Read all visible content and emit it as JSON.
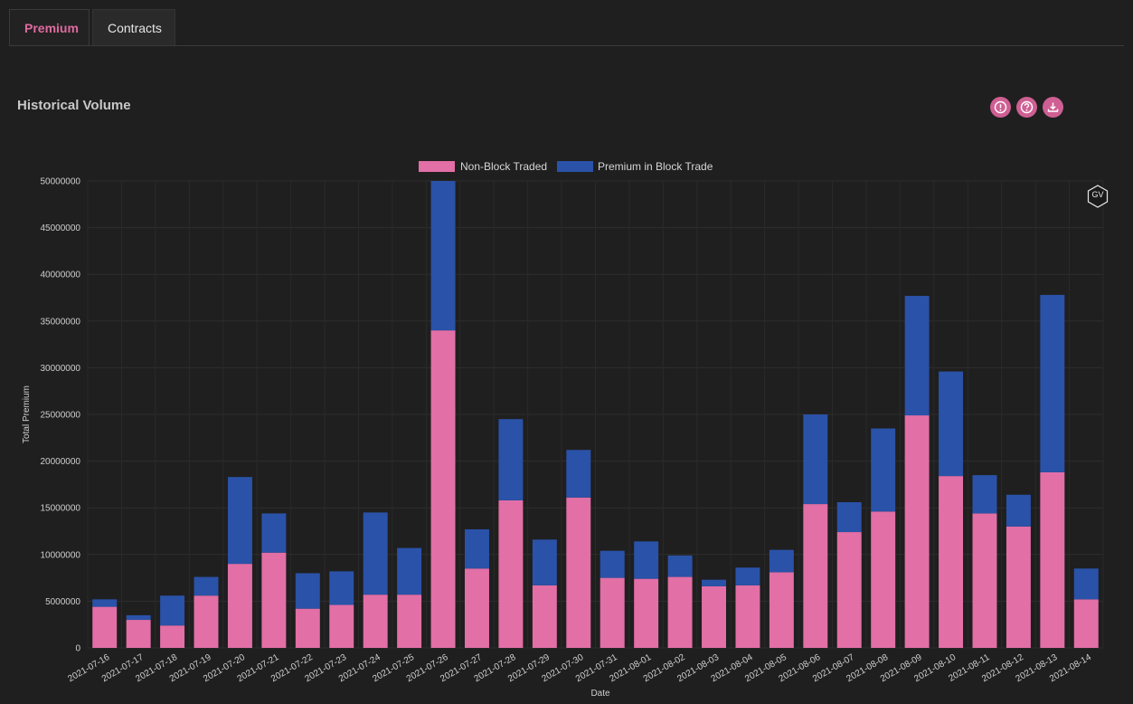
{
  "tabs": [
    {
      "label": "Premium",
      "active": true
    },
    {
      "label": "Contracts",
      "active": false
    }
  ],
  "section_title": "Historical Volume",
  "icons": [
    "alert-icon",
    "help-icon",
    "download-icon"
  ],
  "watermark": "GV",
  "colors": {
    "accent": "#e06aa0",
    "non_block": "#e26fa6",
    "block": "#2a52a8",
    "background": "#1f1f1f"
  },
  "chart_data": {
    "type": "bar",
    "stacked": true,
    "xlabel": "Date",
    "ylabel": "Total Premium",
    "ylim": [
      0,
      50000000
    ],
    "yticks": [
      0,
      5000000,
      10000000,
      15000000,
      20000000,
      25000000,
      30000000,
      35000000,
      40000000,
      45000000,
      50000000
    ],
    "legend_position": "top-center",
    "grid": true,
    "categories": [
      "2021-07-16",
      "2021-07-17",
      "2021-07-18",
      "2021-07-19",
      "2021-07-20",
      "2021-07-21",
      "2021-07-22",
      "2021-07-23",
      "2021-07-24",
      "2021-07-25",
      "2021-07-26",
      "2021-07-27",
      "2021-07-28",
      "2021-07-29",
      "2021-07-30",
      "2021-07-31",
      "2021-08-01",
      "2021-08-02",
      "2021-08-03",
      "2021-08-04",
      "2021-08-05",
      "2021-08-06",
      "2021-08-07",
      "2021-08-08",
      "2021-08-09",
      "2021-08-10",
      "2021-08-11",
      "2021-08-12",
      "2021-08-13",
      "2021-08-14"
    ],
    "series": [
      {
        "name": "Non-Block Traded",
        "color": "#e26fa6",
        "values": [
          4400000,
          3000000,
          2400000,
          5600000,
          9000000,
          10200000,
          4200000,
          4600000,
          5700000,
          5700000,
          34000000,
          8500000,
          15800000,
          6700000,
          16100000,
          7500000,
          7400000,
          7600000,
          6600000,
          6700000,
          8100000,
          15400000,
          12400000,
          14600000,
          24900000,
          18400000,
          14400000,
          13000000,
          18800000,
          5200000
        ]
      },
      {
        "name": "Premium in Block Trade",
        "color": "#2a52a8",
        "values": [
          800000,
          500000,
          3200000,
          2000000,
          9300000,
          4200000,
          3800000,
          3600000,
          8800000,
          5000000,
          16000000,
          4200000,
          8700000,
          4900000,
          5100000,
          2900000,
          4000000,
          2300000,
          700000,
          1900000,
          2400000,
          9600000,
          3200000,
          8900000,
          12800000,
          11200000,
          4100000,
          3400000,
          19000000,
          3300000
        ]
      }
    ]
  }
}
